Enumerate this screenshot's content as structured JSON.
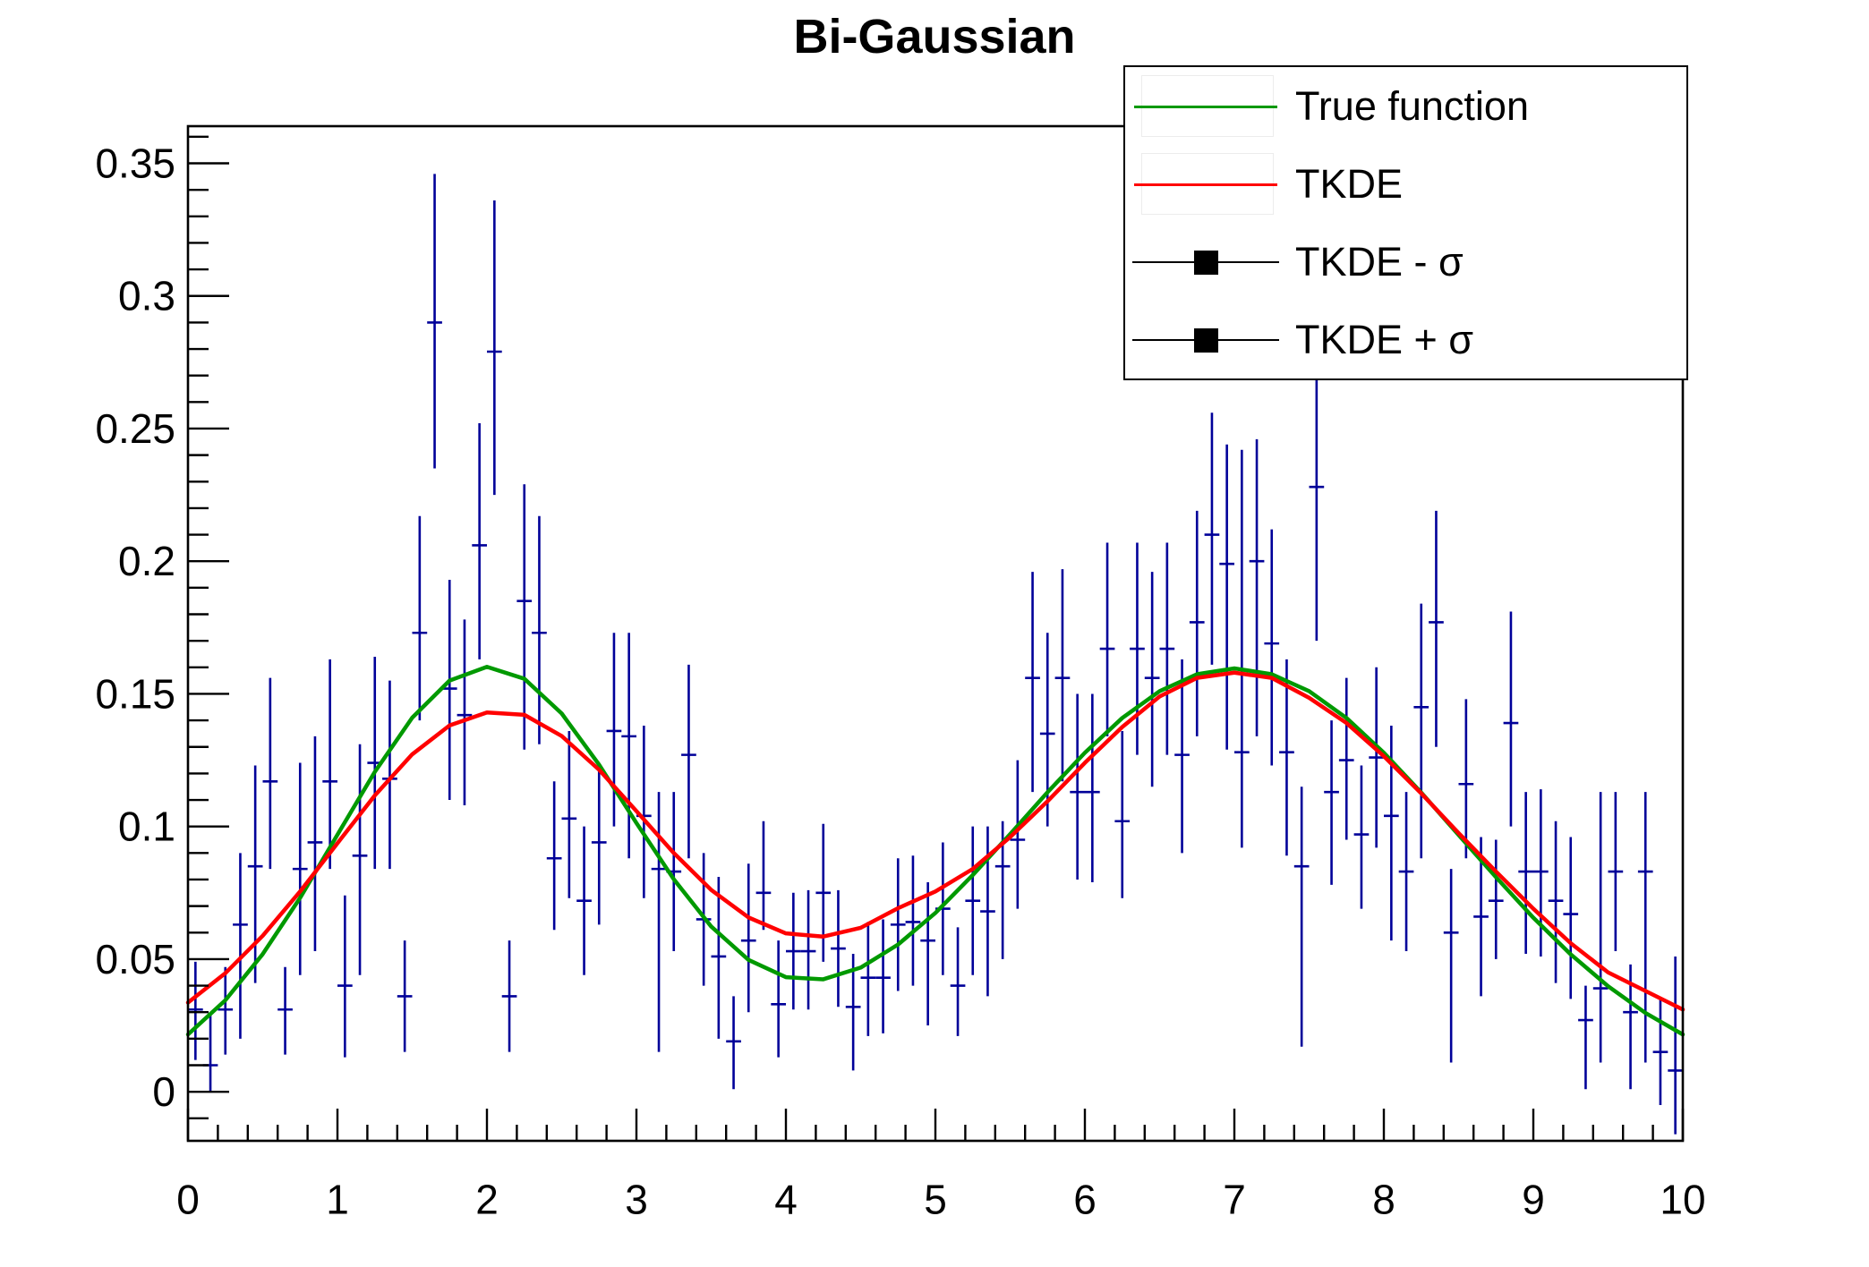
{
  "page": {
    "background_color": "#ffffff"
  },
  "chart_data": {
    "type": "line",
    "title": "Bi-Gaussian",
    "grid": "off",
    "x_axis": {
      "min": 0,
      "max": 10,
      "major_tick_values": [
        0,
        1,
        2,
        3,
        4,
        5,
        6,
        7,
        8,
        9,
        10
      ],
      "major_tick_labels": [
        "0",
        "1",
        "2",
        "3",
        "4",
        "5",
        "6",
        "7",
        "8",
        "9",
        "10"
      ],
      "minor_tick_step": 0.2
    },
    "y_axis": {
      "min": -0.0185,
      "max": 0.364,
      "major_tick_values": [
        0,
        0.05,
        0.1,
        0.15,
        0.2,
        0.25,
        0.3,
        0.35
      ],
      "major_tick_labels": [
        "0",
        "0.05",
        "0.1",
        "0.15",
        "0.2",
        "0.25",
        "0.3",
        "0.35"
      ],
      "minor_tick_step": 0.01
    },
    "legend": {
      "position": "top-right",
      "border_color": "#000000",
      "background": "#ffffff",
      "entries": [
        {
          "label": "True function",
          "symbol": "line",
          "color": "#009900"
        },
        {
          "label": "TKDE",
          "symbol": "line",
          "color": "#ff0000"
        },
        {
          "label": "TKDE - σ",
          "symbol": "square-marker-line",
          "color": "#000000"
        },
        {
          "label": "TKDE + σ",
          "symbol": "square-marker-line",
          "color": "#000000"
        }
      ]
    },
    "series": [
      {
        "name": "True function",
        "type": "line",
        "color": "#009900",
        "line_width": 4.5,
        "x_start": 0,
        "x_step": 0.25,
        "y": [
          0.0216,
          0.0345,
          0.0519,
          0.0731,
          0.0969,
          0.1206,
          0.141,
          0.155,
          0.1602,
          0.1557,
          0.1426,
          0.1233,
          0.1013,
          0.0801,
          0.0623,
          0.0497,
          0.0432,
          0.0424,
          0.0468,
          0.0555,
          0.0674,
          0.0817,
          0.0971,
          0.1129,
          0.1278,
          0.1409,
          0.151,
          0.1574,
          0.1596,
          0.1574,
          0.151,
          0.1409,
          0.1278,
          0.1128,
          0.0968,
          0.0809,
          0.0656,
          0.0518,
          0.0398,
          0.0297,
          0.0216
        ]
      },
      {
        "name": "TKDE",
        "type": "line",
        "color": "#ff0000",
        "line_width": 4.5,
        "x_start": 0,
        "x_step": 0.25,
        "y": [
          0.0336,
          0.0447,
          0.0588,
          0.0755,
          0.0937,
          0.1117,
          0.1272,
          0.1381,
          0.143,
          0.1421,
          0.1341,
          0.1214,
          0.1058,
          0.09,
          0.0761,
          0.0657,
          0.0597,
          0.0585,
          0.0618,
          0.0692,
          0.0755,
          0.084,
          0.096,
          0.1095,
          0.124,
          0.1375,
          0.149,
          0.156,
          0.158,
          0.156,
          0.1485,
          0.139,
          0.1265,
          0.1125,
          0.0975,
          0.083,
          0.069,
          0.056,
          0.045,
          0.038,
          0.031
        ]
      }
    ],
    "error_bars": {
      "note": "navy points with asymmetric error bars; belong to the TKDE - σ and TKDE + σ graphs",
      "color": "#000099",
      "line_width": 2.6,
      "x_half_width": 0.05,
      "columns": [
        "x",
        "y_low",
        "y_center",
        "y_high"
      ],
      "points": [
        [
          0.05,
          0.012,
          0.031,
          0.049
        ],
        [
          0.15,
          0.0,
          0.01,
          0.029
        ],
        [
          0.25,
          0.014,
          0.031,
          0.047
        ],
        [
          0.35,
          0.02,
          0.063,
          0.09
        ],
        [
          0.45,
          0.041,
          0.085,
          0.123
        ],
        [
          0.55,
          0.084,
          0.117,
          0.156
        ],
        [
          0.65,
          0.014,
          0.031,
          0.047
        ],
        [
          0.75,
          0.044,
          0.084,
          0.124
        ],
        [
          0.85,
          0.053,
          0.094,
          0.134
        ],
        [
          0.95,
          0.084,
          0.117,
          0.163
        ],
        [
          1.05,
          0.013,
          0.04,
          0.074
        ],
        [
          1.15,
          0.044,
          0.089,
          0.131
        ],
        [
          1.25,
          0.084,
          0.124,
          0.164
        ],
        [
          1.35,
          0.084,
          0.118,
          0.155
        ],
        [
          1.45,
          0.015,
          0.036,
          0.057
        ],
        [
          1.55,
          0.14,
          0.173,
          0.217
        ],
        [
          1.65,
          0.235,
          0.29,
          0.346
        ],
        [
          1.75,
          0.11,
          0.152,
          0.193
        ],
        [
          1.85,
          0.108,
          0.142,
          0.178
        ],
        [
          1.95,
          0.163,
          0.206,
          0.252
        ],
        [
          2.05,
          0.225,
          0.279,
          0.336
        ],
        [
          2.15,
          0.015,
          0.036,
          0.057
        ],
        [
          2.25,
          0.129,
          0.185,
          0.229
        ],
        [
          2.35,
          0.131,
          0.173,
          0.217
        ],
        [
          2.45,
          0.061,
          0.088,
          0.117
        ],
        [
          2.55,
          0.073,
          0.103,
          0.136
        ],
        [
          2.65,
          0.044,
          0.072,
          0.1
        ],
        [
          2.75,
          0.063,
          0.094,
          0.123
        ],
        [
          2.85,
          0.1,
          0.136,
          0.173
        ],
        [
          2.95,
          0.088,
          0.134,
          0.173
        ],
        [
          3.05,
          0.073,
          0.104,
          0.138
        ],
        [
          3.15,
          0.015,
          0.084,
          0.113
        ],
        [
          3.25,
          0.053,
          0.083,
          0.113
        ],
        [
          3.35,
          0.088,
          0.127,
          0.161
        ],
        [
          3.45,
          0.04,
          0.065,
          0.09
        ],
        [
          3.55,
          0.02,
          0.051,
          0.081
        ],
        [
          3.65,
          0.001,
          0.019,
          0.036
        ],
        [
          3.75,
          0.03,
          0.057,
          0.086
        ],
        [
          3.85,
          0.061,
          0.075,
          0.102
        ],
        [
          3.95,
          0.013,
          0.033,
          0.057
        ],
        [
          4.05,
          0.031,
          0.053,
          0.075
        ],
        [
          4.15,
          0.031,
          0.053,
          0.076
        ],
        [
          4.25,
          0.049,
          0.075,
          0.101
        ],
        [
          4.35,
          0.032,
          0.054,
          0.076
        ],
        [
          4.45,
          0.008,
          0.032,
          0.052
        ],
        [
          4.55,
          0.021,
          0.043,
          0.064
        ],
        [
          4.65,
          0.022,
          0.043,
          0.065
        ],
        [
          4.75,
          0.038,
          0.063,
          0.088
        ],
        [
          4.85,
          0.04,
          0.064,
          0.089
        ],
        [
          4.95,
          0.025,
          0.057,
          0.079
        ],
        [
          5.05,
          0.044,
          0.069,
          0.094
        ],
        [
          5.15,
          0.021,
          0.04,
          0.062
        ],
        [
          5.25,
          0.044,
          0.072,
          0.1
        ],
        [
          5.35,
          0.036,
          0.068,
          0.1
        ],
        [
          5.45,
          0.05,
          0.085,
          0.102
        ],
        [
          5.55,
          0.069,
          0.095,
          0.125
        ],
        [
          5.65,
          0.113,
          0.156,
          0.196
        ],
        [
          5.75,
          0.1,
          0.135,
          0.173
        ],
        [
          5.85,
          0.117,
          0.156,
          0.197
        ],
        [
          5.95,
          0.08,
          0.113,
          0.15
        ],
        [
          6.05,
          0.079,
          0.113,
          0.15
        ],
        [
          6.15,
          0.134,
          0.167,
          0.207
        ],
        [
          6.25,
          0.073,
          0.102,
          0.136
        ],
        [
          6.35,
          0.127,
          0.167,
          0.207
        ],
        [
          6.45,
          0.115,
          0.156,
          0.196
        ],
        [
          6.55,
          0.127,
          0.167,
          0.207
        ],
        [
          6.65,
          0.09,
          0.127,
          0.163
        ],
        [
          6.75,
          0.134,
          0.177,
          0.219
        ],
        [
          6.85,
          0.161,
          0.21,
          0.256
        ],
        [
          6.95,
          0.129,
          0.199,
          0.244
        ],
        [
          7.05,
          0.092,
          0.128,
          0.242
        ],
        [
          7.15,
          0.134,
          0.2,
          0.246
        ],
        [
          7.25,
          0.123,
          0.169,
          0.212
        ],
        [
          7.35,
          0.089,
          0.128,
          0.163
        ],
        [
          7.45,
          0.017,
          0.085,
          0.115
        ],
        [
          7.55,
          0.17,
          0.228,
          0.285
        ],
        [
          7.65,
          0.078,
          0.113,
          0.14
        ],
        [
          7.75,
          0.095,
          0.125,
          0.156
        ],
        [
          7.85,
          0.069,
          0.097,
          0.123
        ],
        [
          7.95,
          0.092,
          0.126,
          0.16
        ],
        [
          8.05,
          0.057,
          0.104,
          0.138
        ],
        [
          8.15,
          0.053,
          0.083,
          0.113
        ],
        [
          8.25,
          0.088,
          0.145,
          0.184
        ],
        [
          8.35,
          0.13,
          0.177,
          0.219
        ],
        [
          8.45,
          0.011,
          0.06,
          0.084
        ],
        [
          8.55,
          0.088,
          0.116,
          0.148
        ],
        [
          8.65,
          0.036,
          0.066,
          0.096
        ],
        [
          8.75,
          0.05,
          0.072,
          0.095
        ],
        [
          8.85,
          0.1,
          0.139,
          0.181
        ],
        [
          8.95,
          0.052,
          0.083,
          0.113
        ],
        [
          9.05,
          0.051,
          0.083,
          0.114
        ],
        [
          9.15,
          0.041,
          0.072,
          0.102
        ],
        [
          9.25,
          0.035,
          0.067,
          0.096
        ],
        [
          9.35,
          0.001,
          0.027,
          0.04
        ],
        [
          9.45,
          0.011,
          0.039,
          0.113
        ],
        [
          9.55,
          0.053,
          0.083,
          0.113
        ],
        [
          9.65,
          0.001,
          0.03,
          0.048
        ],
        [
          9.75,
          0.011,
          0.083,
          0.113
        ],
        [
          9.85,
          -0.005,
          0.015,
          0.035
        ],
        [
          9.95,
          -0.016,
          0.008,
          0.051
        ]
      ]
    }
  }
}
